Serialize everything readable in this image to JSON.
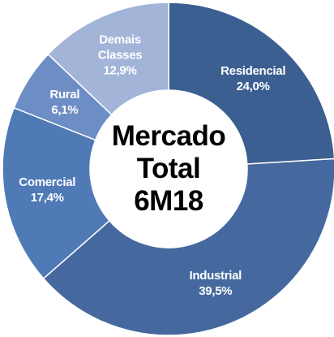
{
  "chart_data": {
    "type": "donut",
    "categories": [
      "Residencial",
      "Industrial",
      "Comercial",
      "Rural",
      "Demais Classes"
    ],
    "values": [
      24.0,
      39.5,
      17.4,
      6.1,
      12.9
    ],
    "value_labels": [
      "24,0%",
      "39,5%",
      "17,4%",
      "6,1%",
      "12,9%"
    ],
    "colors": [
      "#3b5f90",
      "#45699f",
      "#4f7ab6",
      "#6d8dc5",
      "#a2b4d8"
    ],
    "center_text": [
      "Mercado",
      "Total",
      "6M18"
    ]
  }
}
